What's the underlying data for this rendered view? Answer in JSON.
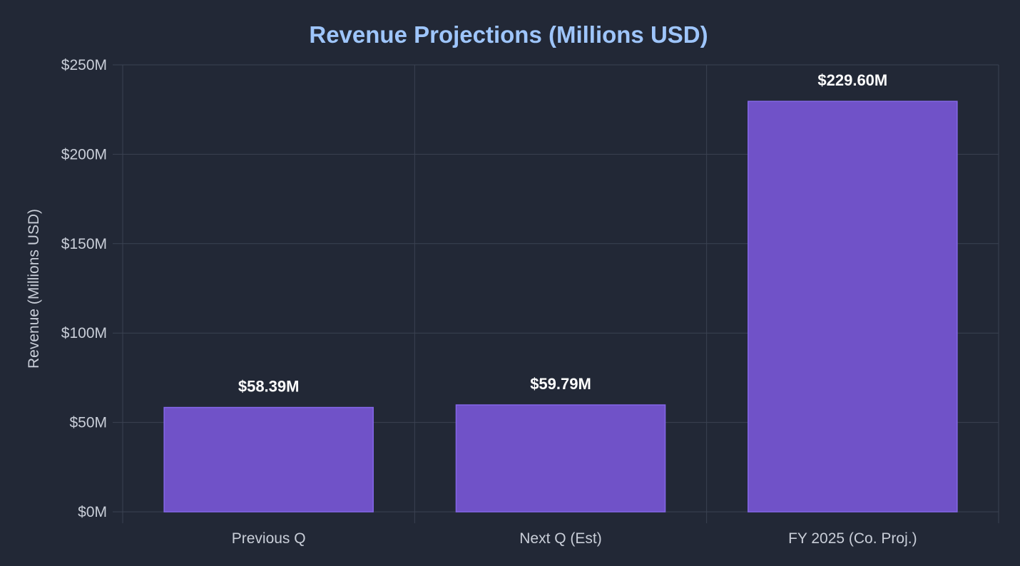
{
  "chart_data": {
    "type": "bar",
    "title": "Revenue Projections (Millions USD)",
    "xlabel": "",
    "ylabel": "Revenue (Millions USD)",
    "categories": [
      "Previous Q",
      "Next Q (Est)",
      "FY 2025 (Co. Proj.)"
    ],
    "values": [
      58.39,
      59.79,
      229.6
    ],
    "data_labels": [
      "$58.39M",
      "$59.79M",
      "$229.60M"
    ],
    "ylim": [
      0,
      250
    ],
    "y_ticks": [
      0,
      50,
      100,
      150,
      200,
      250
    ],
    "y_tick_labels": [
      "$0M",
      "$50M",
      "$100M",
      "$150M",
      "$200M",
      "$250M"
    ],
    "grid": true,
    "legend": "none"
  },
  "colors": {
    "background": "#222836",
    "title": "#9ec5fb",
    "bar_fill": "#7052c8",
    "bar_stroke": "#8467e8",
    "grid": "#3b4252",
    "tick_text": "#c9ced8",
    "data_label": "#ffffff"
  }
}
